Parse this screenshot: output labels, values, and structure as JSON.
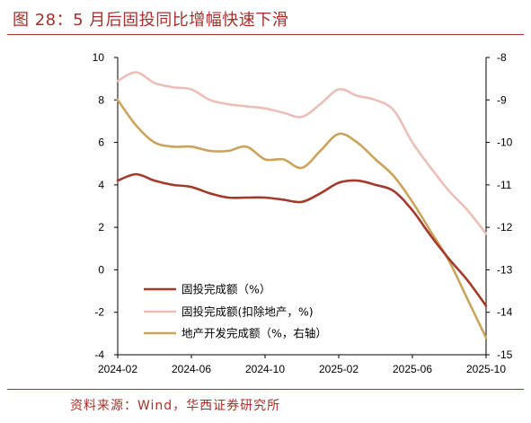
{
  "header": {
    "title": "图 28：5 月后固投同比增幅快速下滑"
  },
  "footer": {
    "source": "资料来源：Wind，华西证券研究所"
  },
  "chart_data": {
    "type": "line",
    "x": [
      "2024-02",
      "2024-03",
      "2024-04",
      "2024-05",
      "2024-06",
      "2024-07",
      "2024-08",
      "2024-09",
      "2024-10",
      "2024-11",
      "2024-12",
      "2025-01",
      "2025-02",
      "2025-03",
      "2025-04",
      "2025-05",
      "2025-06",
      "2025-07",
      "2025-08",
      "2025-09",
      "2025-10"
    ],
    "x_tick_labels": [
      "2024-02",
      "2024-06",
      "2024-10",
      "2025-02",
      "2025-06",
      "2025-10"
    ],
    "left_axis": {
      "ylim": [
        -4,
        10
      ],
      "ticks": [
        "10",
        "8",
        "6",
        "4",
        "2",
        "0",
        "-2",
        "-4"
      ]
    },
    "right_axis": {
      "ylim": [
        -15,
        -8
      ],
      "ticks": [
        "-8",
        "-9",
        "-10",
        "-11",
        "-12",
        "-13",
        "-14",
        "-15"
      ]
    },
    "grid": false,
    "legend_position": "bottom-left",
    "series": [
      {
        "name": "固投完成额（%）",
        "axis": "left",
        "color": "#a43a2c",
        "values": [
          4.2,
          4.5,
          4.2,
          4.0,
          3.9,
          3.6,
          3.4,
          3.4,
          3.4,
          3.3,
          3.2,
          3.6,
          4.1,
          4.2,
          4.0,
          3.7,
          2.8,
          1.6,
          0.5,
          -0.5,
          -1.7
        ]
      },
      {
        "name": "固投完成额(扣除地产，%)",
        "axis": "left",
        "color": "#ebbfb8",
        "values": [
          8.9,
          9.3,
          8.8,
          8.6,
          8.5,
          8.0,
          7.8,
          7.7,
          7.6,
          7.4,
          7.2,
          7.8,
          8.5,
          8.2,
          8.0,
          7.5,
          6.0,
          4.8,
          3.7,
          2.8,
          1.7
        ]
      },
      {
        "name": "地产开发完成额（%，右轴）",
        "axis": "right",
        "color": "#c9a45a",
        "values": [
          -9.0,
          -9.6,
          -10.0,
          -10.1,
          -10.1,
          -10.2,
          -10.2,
          -10.1,
          -10.4,
          -10.4,
          -10.6,
          -10.2,
          -9.8,
          -10.0,
          -10.4,
          -10.8,
          -11.4,
          -12.1,
          -12.8,
          -13.7,
          -14.6
        ]
      }
    ]
  }
}
